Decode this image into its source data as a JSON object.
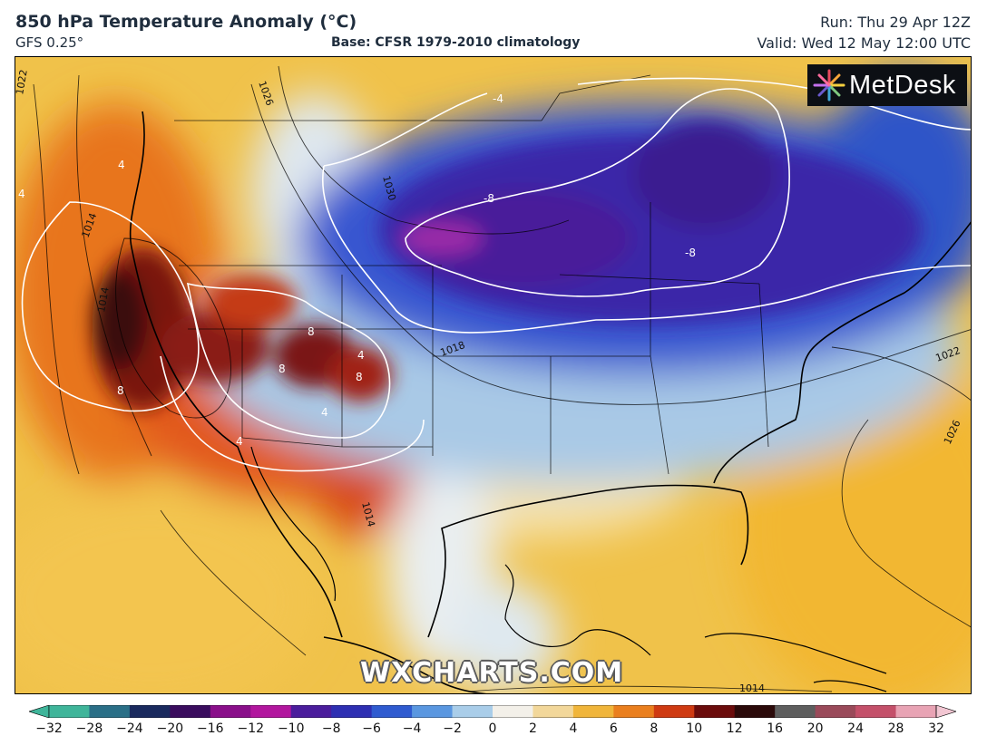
{
  "header": {
    "title": "850 hPa Temperature Anomaly (°C)",
    "model": "GFS 0.25°",
    "base": "Base: CFSR 1979-2010 climatology",
    "run": "Run: Thu 29 Apr 12Z",
    "valid": "Valid: Wed 12 May 12:00 UTC"
  },
  "logo": {
    "text": "MetDesk",
    "icon": "starburst-logo-icon"
  },
  "watermark": "WXCHARTS.COM",
  "map": {
    "region": "North America",
    "anomaly_labels": [
      "-4",
      "-8",
      "-8",
      "4",
      "4",
      "8",
      "8",
      "8",
      "8",
      "4",
      "4",
      "4"
    ],
    "isobar_labels": [
      "1022",
      "1026",
      "1030",
      "1014",
      "1014",
      "1018",
      "1022",
      "1026",
      "1014",
      "1014"
    ]
  },
  "colorbar": {
    "ticks": [
      "−32",
      "−28",
      "−24",
      "−20",
      "−16",
      "−12",
      "−10",
      "−8",
      "−6",
      "−4",
      "−2",
      "0",
      "2",
      "4",
      "6",
      "8",
      "10",
      "12",
      "16",
      "20",
      "24",
      "28",
      "32"
    ],
    "colors": [
      "#3fb59a",
      "#2a6f87",
      "#1a2a5e",
      "#3a0d5e",
      "#8a0f8a",
      "#b2169e",
      "#4b1d9c",
      "#2e2fb2",
      "#2f5bd0",
      "#5a97e0",
      "#a9cde9",
      "#f3f0e9",
      "#f2d79a",
      "#f0b53a",
      "#ea7f1e",
      "#cf3a12",
      "#6b0c0c",
      "#2b0a0a",
      "#5e5e5e",
      "#9a4a5a",
      "#c4506a",
      "#e8a3b4"
    ]
  }
}
